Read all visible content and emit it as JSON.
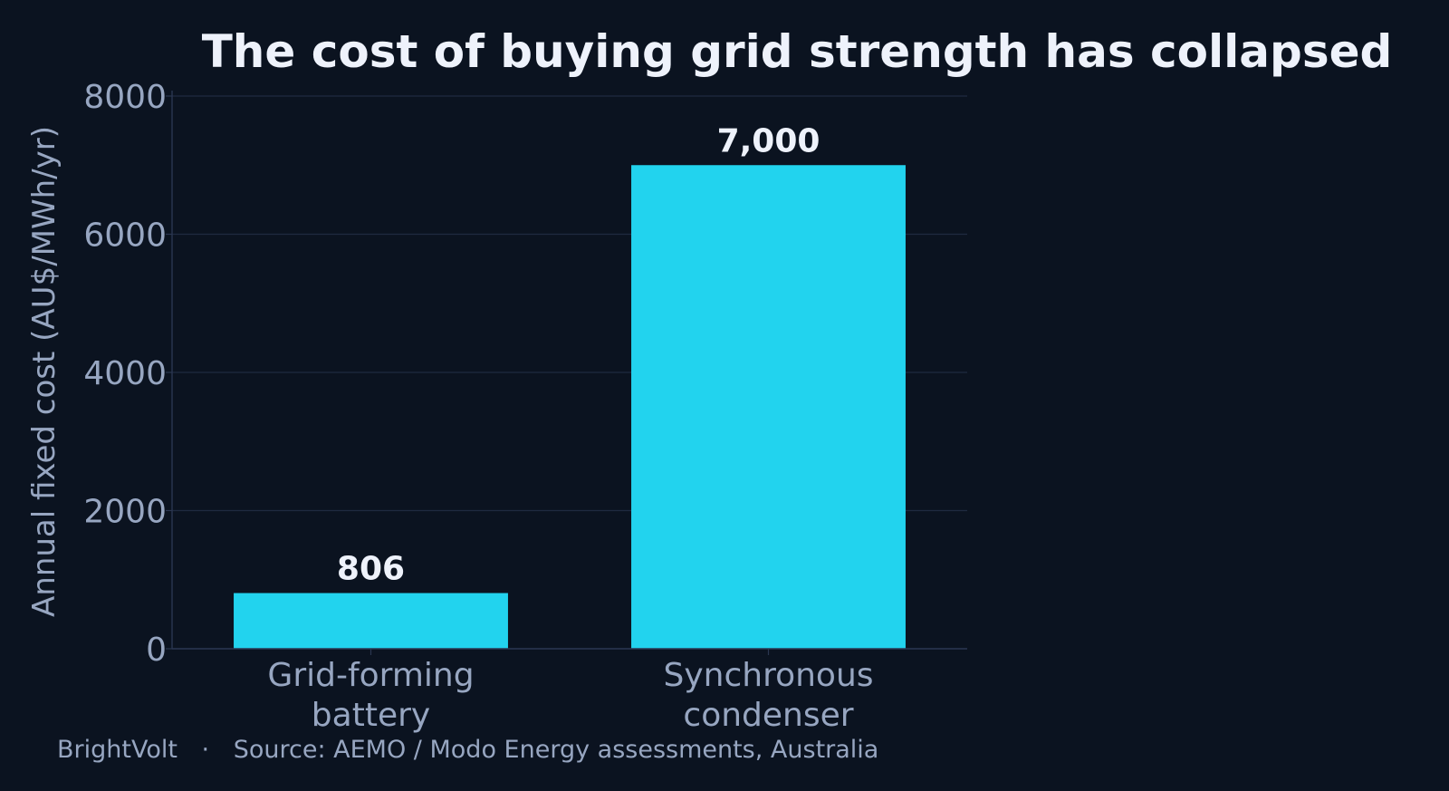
{
  "colors": {
    "background": "#0b1320",
    "bar": "#22d3ee",
    "grid": "#1f2a40",
    "axis": "#2a3650",
    "text_muted": "#97a6c1",
    "text_bright": "#eef2fb"
  },
  "footer": {
    "brand": "BrightVolt",
    "separator": "·",
    "source": "Source: AEMO / Modo Energy assessments, Australia"
  },
  "chart_data": {
    "type": "bar",
    "title": "The cost of buying grid strength has collapsed",
    "xlabel": "",
    "ylabel": "Annual fixed cost (AU$/MWh/yr)",
    "categories": [
      [
        "Grid-forming",
        "battery"
      ],
      [
        "Synchronous",
        "condenser"
      ]
    ],
    "values": [
      806,
      7000
    ],
    "data_labels": [
      "806",
      "7,000"
    ],
    "ylim": [
      0,
      8000
    ],
    "yticks": [
      0,
      2000,
      4000,
      6000,
      8000
    ],
    "ytick_labels": [
      "0",
      "2000",
      "4000",
      "6000",
      "8000"
    ],
    "grid": true,
    "legend": "none"
  }
}
